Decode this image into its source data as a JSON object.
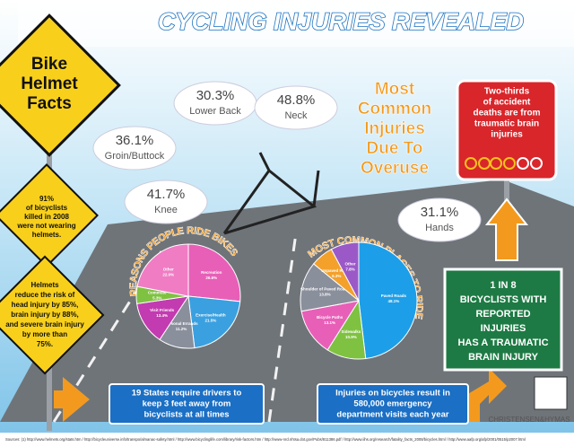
{
  "title": "CYCLING INJURIES REVEALED",
  "helmet_sign": [
    "Bike",
    "Helmet",
    "Facts"
  ],
  "helmet_facts": [
    [
      "91%",
      "of bicyclists",
      "killed in 2008",
      "were not wearing",
      "helmets."
    ],
    [
      "Helmets",
      "reduce the risk of",
      "head injury by 85%,",
      "brain injury by 88%,",
      "and severe brain injury",
      "by more than",
      "75%."
    ]
  ],
  "overuse_heading": [
    "Most",
    "Common",
    "Injuries",
    "Due To",
    "Overuse"
  ],
  "injuries": [
    {
      "value": "30.3%",
      "label": "Lower Back"
    },
    {
      "value": "48.8%",
      "label": "Neck"
    },
    {
      "value": "36.1%",
      "label": "Groin/Buttock"
    },
    {
      "value": "41.7%",
      "label": "Knee"
    },
    {
      "value": "31.1%",
      "label": "Hands"
    }
  ],
  "brain_sign": [
    "Two-thirds",
    "of accident",
    "deaths are from",
    "traumatic brain",
    "injuries"
  ],
  "brain_box": [
    "1 IN 8",
    "BICYCLISTS WITH",
    "REPORTED",
    "INJURIES",
    "HAS A TRAUMATIC",
    "BRAIN INJURY"
  ],
  "states_box": [
    "19 States require drivers to",
    "keep 3 feet away from",
    "bicyclists at all times"
  ],
  "visits_box": [
    "Injuries on bicycles result in",
    "580,000 emergency",
    "department visits each year"
  ],
  "credit": "CHRISTENSEN&HYMAS",
  "sources": "Sources: (1) http://www.helmets.org/stats.htm  /  http://bicycleuniverse.info/transpo/almanac-safety.html  /  http://www.bicyclinglife.com/library/risk-factors.htm  /  http://www-nrd.nhtsa.dot.gov/Pubs/811386.pdf  /  http://www.iihs.org/research/fatality_facts_2008/bicycles.html  /  http://www.aafp.org/afp/2001/0515/p2007.html",
  "chart_data": [
    {
      "type": "pie",
      "title": "REASONS PEOPLE RIDE BIKES",
      "categories": [
        "Recreation",
        "Exercise/Health",
        "Personal Errands",
        "Visit Friends",
        "Commute",
        "Other"
      ],
      "values": [
        26.6,
        21.5,
        11.2,
        13.4,
        5.3,
        22.0
      ],
      "value_labels": [
        "26.6%",
        "21.5%",
        "11.2%",
        "13.4%",
        "5.3%",
        "22.0%"
      ],
      "colors": [
        "#e85fb8",
        "#3aa0e0",
        "#8a8f9c",
        "#c33bb0",
        "#7fc241",
        "#f07cc4"
      ]
    },
    {
      "type": "pie",
      "title": "MOST COMMON PLACES TO RIDE",
      "categories": [
        "Paved Roads",
        "Sidewalks",
        "Bicycle Paths",
        "Shoulder of Paved Roads",
        "Unpaved Roads",
        "Other"
      ],
      "values": [
        48.1,
        10.9,
        13.1,
        13.8,
        6.3,
        7.8
      ],
      "value_labels": [
        "48.1%",
        "10.9%",
        "13.1%",
        "13.8%",
        "6.3%",
        "7.8%"
      ],
      "colors": [
        "#1d9ee8",
        "#7fc241",
        "#e85fb8",
        "#8a8f9c",
        "#f3a12b",
        "#9b59c8"
      ]
    }
  ]
}
